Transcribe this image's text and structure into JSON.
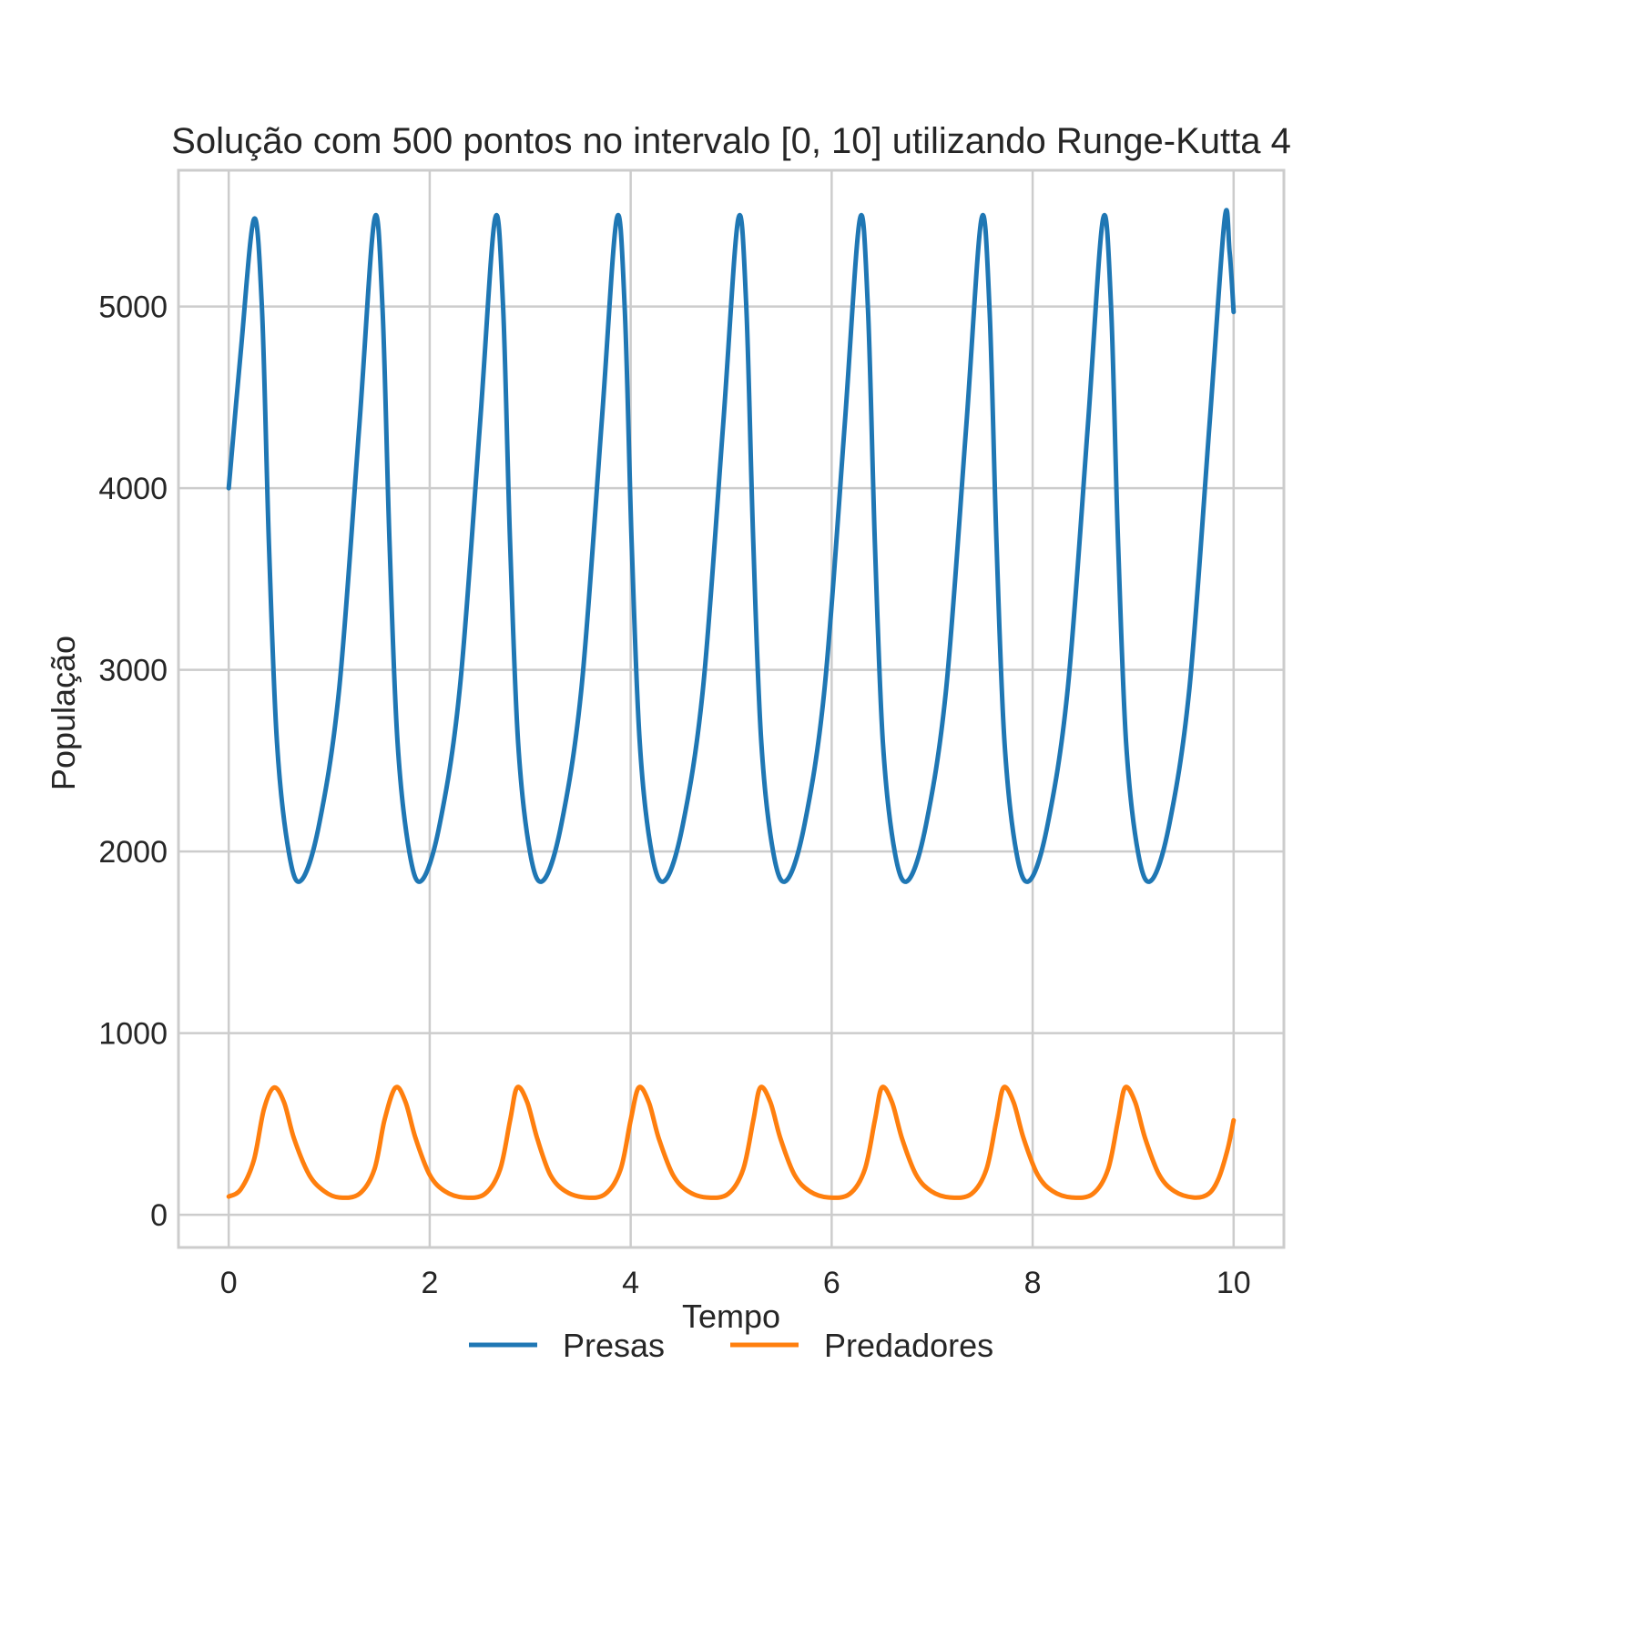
{
  "chart_data": {
    "type": "line",
    "title": "Solução com 500 pontos no intervalo [0, 10] utilizando Runge-Kutta 4",
    "xlabel": "Tempo",
    "ylabel": "População",
    "xlim": [
      -0.5,
      10.5
    ],
    "ylim": [
      -180,
      5750
    ],
    "xticks": [
      0,
      2,
      4,
      6,
      8,
      10
    ],
    "yticks": [
      0,
      1000,
      2000,
      3000,
      4000,
      5000
    ],
    "grid": true,
    "legend_position": "bottom-center",
    "series": [
      {
        "name": "Presas",
        "color": "#1f77b4",
        "points": [
          [
            0,
            4000
          ],
          [
            0.12,
            4750
          ],
          [
            0.25,
            5480
          ],
          [
            0.33,
            5000
          ],
          [
            0.4,
            3700
          ],
          [
            0.48,
            2600
          ],
          [
            0.6,
            1990
          ],
          [
            0.72,
            1840
          ],
          [
            0.9,
            2150
          ],
          [
            1.1,
            2900
          ],
          [
            1.3,
            4350
          ],
          [
            1.45,
            5480
          ],
          [
            1.53,
            5000
          ],
          [
            1.6,
            3700
          ],
          [
            1.68,
            2600
          ],
          [
            1.8,
            1990
          ],
          [
            1.92,
            1840
          ],
          [
            2.1,
            2150
          ],
          [
            2.3,
            2900
          ],
          [
            2.5,
            4350
          ],
          [
            2.65,
            5480
          ],
          [
            2.73,
            5000
          ],
          [
            2.8,
            3700
          ],
          [
            2.88,
            2600
          ],
          [
            3.0,
            1990
          ],
          [
            3.13,
            1840
          ],
          [
            3.31,
            2150
          ],
          [
            3.51,
            2900
          ],
          [
            3.71,
            4350
          ],
          [
            3.86,
            5480
          ],
          [
            3.94,
            5000
          ],
          [
            4.01,
            3700
          ],
          [
            4.09,
            2600
          ],
          [
            4.21,
            1990
          ],
          [
            4.34,
            1840
          ],
          [
            4.52,
            2150
          ],
          [
            4.72,
            2900
          ],
          [
            4.92,
            4350
          ],
          [
            5.07,
            5480
          ],
          [
            5.15,
            5000
          ],
          [
            5.22,
            3700
          ],
          [
            5.3,
            2600
          ],
          [
            5.42,
            1990
          ],
          [
            5.55,
            1840
          ],
          [
            5.73,
            2150
          ],
          [
            5.93,
            2900
          ],
          [
            6.13,
            4350
          ],
          [
            6.28,
            5480
          ],
          [
            6.36,
            5000
          ],
          [
            6.43,
            3700
          ],
          [
            6.51,
            2600
          ],
          [
            6.63,
            1990
          ],
          [
            6.76,
            1840
          ],
          [
            6.94,
            2150
          ],
          [
            7.14,
            2900
          ],
          [
            7.34,
            4350
          ],
          [
            7.49,
            5480
          ],
          [
            7.57,
            5000
          ],
          [
            7.64,
            3700
          ],
          [
            7.72,
            2600
          ],
          [
            7.84,
            1990
          ],
          [
            7.97,
            1840
          ],
          [
            8.15,
            2150
          ],
          [
            8.35,
            2900
          ],
          [
            8.55,
            4350
          ],
          [
            8.7,
            5480
          ],
          [
            8.78,
            5000
          ],
          [
            8.85,
            3700
          ],
          [
            8.93,
            2600
          ],
          [
            9.05,
            1990
          ],
          [
            9.18,
            1840
          ],
          [
            9.36,
            2150
          ],
          [
            9.56,
            2900
          ],
          [
            9.76,
            4350
          ],
          [
            9.91,
            5480
          ],
          [
            9.96,
            5300
          ],
          [
            10,
            4970
          ]
        ]
      },
      {
        "name": "Predadores",
        "color": "#ff7f0e",
        "points": [
          [
            0,
            100
          ],
          [
            0.12,
            140
          ],
          [
            0.25,
            300
          ],
          [
            0.35,
            580
          ],
          [
            0.45,
            700
          ],
          [
            0.55,
            620
          ],
          [
            0.65,
            420
          ],
          [
            0.8,
            220
          ],
          [
            0.95,
            130
          ],
          [
            1.1,
            95
          ],
          [
            1.3,
            115
          ],
          [
            1.45,
            250
          ],
          [
            1.55,
            520
          ],
          [
            1.66,
            700
          ],
          [
            1.76,
            620
          ],
          [
            1.86,
            420
          ],
          [
            2.0,
            220
          ],
          [
            2.15,
            130
          ],
          [
            2.34,
            95
          ],
          [
            2.55,
            115
          ],
          [
            2.7,
            250
          ],
          [
            2.8,
            520
          ],
          [
            2.87,
            700
          ],
          [
            2.97,
            620
          ],
          [
            3.07,
            420
          ],
          [
            3.2,
            220
          ],
          [
            3.35,
            130
          ],
          [
            3.55,
            95
          ],
          [
            3.75,
            115
          ],
          [
            3.9,
            250
          ],
          [
            4.0,
            520
          ],
          [
            4.08,
            700
          ],
          [
            4.18,
            620
          ],
          [
            4.28,
            420
          ],
          [
            4.42,
            220
          ],
          [
            4.57,
            130
          ],
          [
            4.76,
            95
          ],
          [
            4.97,
            115
          ],
          [
            5.12,
            250
          ],
          [
            5.22,
            520
          ],
          [
            5.29,
            700
          ],
          [
            5.39,
            620
          ],
          [
            5.49,
            420
          ],
          [
            5.63,
            220
          ],
          [
            5.78,
            130
          ],
          [
            5.97,
            95
          ],
          [
            6.18,
            115
          ],
          [
            6.33,
            250
          ],
          [
            6.43,
            520
          ],
          [
            6.5,
            700
          ],
          [
            6.6,
            620
          ],
          [
            6.7,
            420
          ],
          [
            6.84,
            220
          ],
          [
            6.99,
            130
          ],
          [
            7.18,
            95
          ],
          [
            7.39,
            115
          ],
          [
            7.54,
            250
          ],
          [
            7.64,
            520
          ],
          [
            7.71,
            700
          ],
          [
            7.81,
            620
          ],
          [
            7.91,
            420
          ],
          [
            8.05,
            220
          ],
          [
            8.2,
            130
          ],
          [
            8.39,
            95
          ],
          [
            8.6,
            115
          ],
          [
            8.75,
            250
          ],
          [
            8.85,
            520
          ],
          [
            8.92,
            700
          ],
          [
            9.02,
            620
          ],
          [
            9.12,
            420
          ],
          [
            9.26,
            220
          ],
          [
            9.41,
            130
          ],
          [
            9.6,
            95
          ],
          [
            9.75,
            115
          ],
          [
            9.85,
            200
          ],
          [
            9.94,
            360
          ],
          [
            10,
            520
          ]
        ]
      }
    ]
  }
}
